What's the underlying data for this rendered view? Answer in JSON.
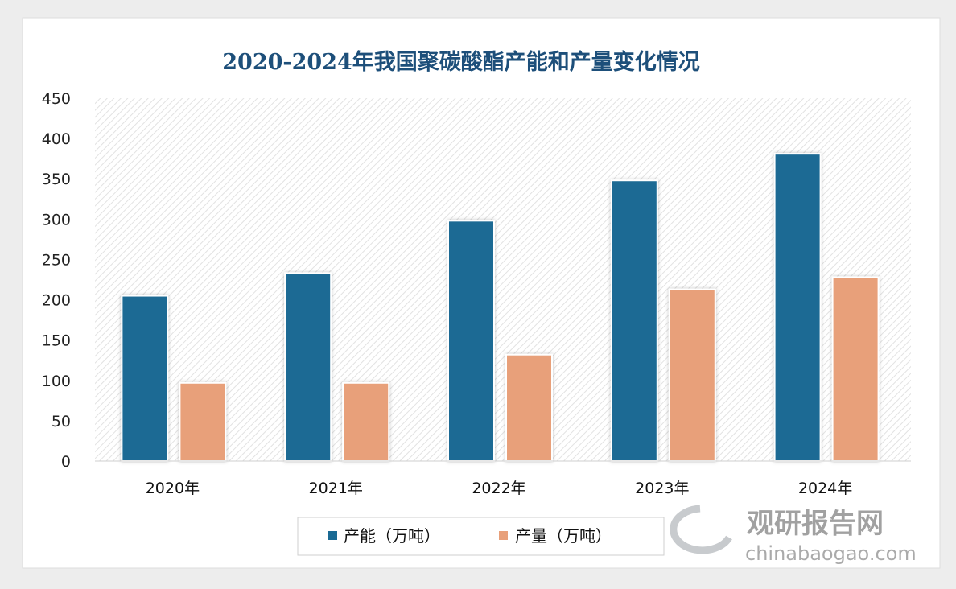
{
  "chart_data": {
    "type": "bar",
    "title": "2020-2024年我国聚碳酸酯产能和产量变化情况",
    "categories": [
      "2020年",
      "2021年",
      "2022年",
      "2023年",
      "2024年"
    ],
    "series": [
      {
        "name": "产能（万吨）",
        "color": "#1a6a94",
        "values": [
          205,
          233,
          298,
          348,
          381
        ]
      },
      {
        "name": "产量（万吨）",
        "color": "#e8a07a",
        "values": [
          97,
          97,
          132,
          213,
          228
        ]
      }
    ],
    "yticks": [
      "0",
      "50",
      "100",
      "150",
      "200",
      "250",
      "300",
      "350",
      "400",
      "450"
    ],
    "ylim": [
      0,
      450
    ],
    "xlabel": "",
    "ylabel": "",
    "legend": "bottom"
  },
  "watermark": {
    "brand": "观研报告网",
    "site": "chinabaogao.com"
  }
}
